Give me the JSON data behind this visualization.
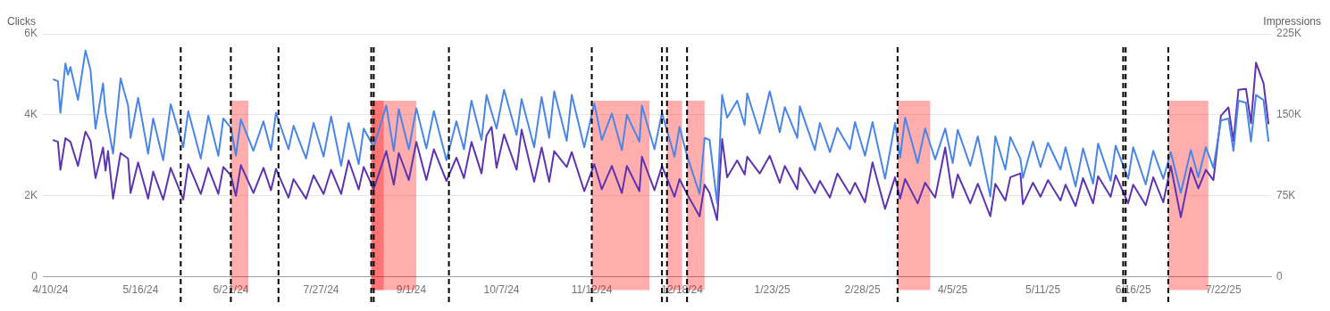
{
  "chart_data": {
    "type": "line",
    "ylabel": "Clicks",
    "y2label": "Impressions",
    "x": [
      "2024-04-11",
      "2024-04-13",
      "2024-04-14",
      "2024-04-16",
      "2024-04-17",
      "2024-04-18",
      "2024-04-21",
      "2024-04-24",
      "2024-04-26",
      "2024-04-28",
      "2024-05-01",
      "2024-05-02",
      "2024-05-03",
      "2024-05-05",
      "2024-05-08",
      "2024-05-11",
      "2024-05-12",
      "2024-05-15",
      "2024-05-19",
      "2024-05-21",
      "2024-05-25",
      "2024-05-28",
      "2024-06-02",
      "2024-06-04",
      "2024-06-09",
      "2024-06-12",
      "2024-06-16",
      "2024-06-18",
      "2024-06-21",
      "2024-06-23",
      "2024-06-25",
      "2024-06-30",
      "2024-07-04",
      "2024-07-07",
      "2024-07-09",
      "2024-07-14",
      "2024-07-16",
      "2024-07-21",
      "2024-07-24",
      "2024-07-28",
      "2024-07-31",
      "2024-08-04",
      "2024-08-07",
      "2024-08-11",
      "2024-08-13",
      "2024-08-17",
      "2024-08-22",
      "2024-08-25",
      "2024-08-27",
      "2024-08-31",
      "2024-09-03",
      "2024-09-07",
      "2024-09-10",
      "2024-09-15",
      "2024-09-19",
      "2024-09-22",
      "2024-09-25",
      "2024-09-29",
      "2024-10-01",
      "2024-10-03",
      "2024-10-05",
      "2024-10-08",
      "2024-10-13",
      "2024-10-15",
      "2024-10-20",
      "2024-10-23",
      "2024-10-26",
      "2024-10-28",
      "2024-11-02",
      "2024-11-04",
      "2024-11-09",
      "2024-11-13",
      "2024-11-16",
      "2024-11-20",
      "2024-11-24",
      "2024-11-26",
      "2024-12-01",
      "2024-12-02",
      "2024-12-07",
      "2024-12-10",
      "2024-12-15",
      "2024-12-17",
      "2024-12-20",
      "2024-12-25",
      "2024-12-27",
      "2024-12-29",
      "2025-01-01",
      "2025-01-03",
      "2025-01-05",
      "2025-01-09",
      "2025-01-12",
      "2025-01-13",
      "2025-01-18",
      "2025-01-22",
      "2025-01-26",
      "2025-01-28",
      "2025-02-02",
      "2025-02-03",
      "2025-02-09",
      "2025-02-11",
      "2025-02-15",
      "2025-02-18",
      "2025-02-23",
      "2025-02-25",
      "2025-03-01",
      "2025-03-04",
      "2025-03-09",
      "2025-03-13",
      "2025-03-15",
      "2025-03-17",
      "2025-03-22",
      "2025-03-25",
      "2025-03-29",
      "2025-04-02",
      "2025-04-05",
      "2025-04-07",
      "2025-04-12",
      "2025-04-15",
      "2025-04-20",
      "2025-04-22",
      "2025-04-26",
      "2025-04-28",
      "2025-05-02",
      "2025-05-03",
      "2025-05-07",
      "2025-05-10",
      "2025-05-13",
      "2025-05-18",
      "2025-05-20",
      "2025-05-24",
      "2025-05-27",
      "2025-05-31",
      "2025-06-02",
      "2025-06-07",
      "2025-06-09",
      "2025-06-14",
      "2025-06-16",
      "2025-06-21",
      "2025-06-24",
      "2025-06-28",
      "2025-07-01",
      "2025-07-05",
      "2025-07-09",
      "2025-07-12",
      "2025-07-15",
      "2025-07-18",
      "2025-07-21",
      "2025-07-24",
      "2025-07-26",
      "2025-07-28",
      "2025-07-31",
      "2025-08-02",
      "2025-08-04",
      "2025-08-07",
      "2025-08-09"
    ],
    "series": [
      {
        "color": "#4a86e8",
        "axis": "y",
        "values": [
          4880,
          4830,
          4050,
          5270,
          4990,
          5180,
          4370,
          5590,
          5110,
          3660,
          4780,
          4070,
          3730,
          3040,
          4900,
          4230,
          3430,
          4420,
          3040,
          3910,
          2880,
          4260,
          3200,
          4090,
          2920,
          3980,
          2990,
          3910,
          3680,
          2990,
          3890,
          3110,
          3840,
          3130,
          4050,
          3150,
          3730,
          2920,
          3800,
          2970,
          3960,
          2740,
          3800,
          2780,
          3660,
          3200,
          4230,
          3110,
          4140,
          3150,
          4160,
          3170,
          4090,
          2880,
          3840,
          3150,
          4350,
          3380,
          4490,
          4070,
          3660,
          4620,
          3500,
          4390,
          3200,
          4440,
          3430,
          4580,
          3360,
          4490,
          3200,
          4280,
          3380,
          4030,
          3130,
          4000,
          3340,
          4230,
          3150,
          4050,
          2970,
          3700,
          2990,
          2050,
          3430,
          3380,
          1820,
          4490,
          3930,
          4350,
          3750,
          4530,
          3540,
          4580,
          3570,
          4190,
          3430,
          4210,
          3130,
          3800,
          3080,
          3680,
          3150,
          3820,
          2990,
          3820,
          2420,
          3800,
          2940,
          3930,
          2810,
          3660,
          2900,
          3660,
          2810,
          3630,
          2740,
          3470,
          1980,
          3470,
          2650,
          3450,
          2920,
          2440,
          3340,
          2710,
          3310,
          2650,
          3200,
          2230,
          3170,
          2300,
          3290,
          2370,
          3240,
          2420,
          3200,
          2280,
          3110,
          2420,
          3080,
          2070,
          3130,
          2460,
          3200,
          2690,
          3860,
          3910,
          3110,
          4350,
          4300,
          3340,
          4490,
          4370,
          3340
        ]
      },
      {
        "color": "#5e35b1",
        "axis": "y2",
        "values": [
          126700,
          125000,
          99100,
          128400,
          126700,
          125000,
          102600,
          134500,
          125900,
          91400,
          119800,
          98300,
          116400,
          72400,
          114600,
          109500,
          77600,
          106000,
          72400,
          97400,
          71500,
          100900,
          71500,
          104300,
          76700,
          100900,
          76700,
          101700,
          94000,
          75000,
          103400,
          77600,
          100900,
          80200,
          100000,
          73300,
          90500,
          72400,
          94000,
          76700,
          99100,
          76700,
          107800,
          81000,
          101700,
          81000,
          116400,
          85300,
          114600,
          89600,
          125000,
          89600,
          118100,
          88800,
          110300,
          91400,
          125000,
          95700,
          131000,
          138800,
          100900,
          131900,
          99100,
          136200,
          87900,
          119800,
          87900,
          116400,
          101700,
          115500,
          79300,
          104300,
          81000,
          102600,
          77600,
          102600,
          79300,
          111200,
          80200,
          102600,
          74100,
          90500,
          76700,
          56000,
          85300,
          77600,
          52600,
          127600,
          92200,
          107800,
          94800,
          111200,
          95700,
          112100,
          87100,
          102600,
          81000,
          100900,
          77600,
          88800,
          73300,
          95700,
          76700,
          87100,
          69000,
          106000,
          62900,
          92200,
          72400,
          90500,
          68100,
          87100,
          73300,
          119800,
          73300,
          94800,
          68100,
          86200,
          56000,
          86200,
          70700,
          92200,
          95700,
          67200,
          87100,
          74100,
          89600,
          70700,
          85300,
          65500,
          91400,
          68100,
          93100,
          74100,
          94000,
          68100,
          85300,
          66400,
          92200,
          69000,
          102600,
          55200,
          100900,
          81900,
          99100,
          89600,
          149100,
          156900,
          125900,
          173300,
          174100,
          142200,
          198300,
          179300,
          141400
        ]
      }
    ],
    "xlim": [
      "2024-04-07",
      "2025-08-10"
    ],
    "xticks": [
      {
        "value": "2024-04-10",
        "label": "4/10/24"
      },
      {
        "value": "2024-05-16",
        "label": "5/16/24"
      },
      {
        "value": "2024-06-21",
        "label": "6/21/24"
      },
      {
        "value": "2024-07-27",
        "label": "7/27/24"
      },
      {
        "value": "2024-09-01",
        "label": "9/1/24"
      },
      {
        "value": "2024-10-07",
        "label": "10/7/24"
      },
      {
        "value": "2024-11-12",
        "label": "11/12/24"
      },
      {
        "value": "2024-12-18",
        "label": "12/18/24"
      },
      {
        "value": "2025-01-23",
        "label": "1/23/25"
      },
      {
        "value": "2025-02-28",
        "label": "2/28/25"
      },
      {
        "value": "2025-04-05",
        "label": "4/5/25"
      },
      {
        "value": "2025-05-11",
        "label": "5/11/25"
      },
      {
        "value": "2025-06-16",
        "label": "6/16/25"
      },
      {
        "value": "2025-07-22",
        "label": "7/22/25"
      }
    ],
    "ylim": [
      0,
      6000
    ],
    "yticks": [
      0,
      {
        "value": 2000,
        "label": "2K"
      },
      {
        "value": 4000,
        "label": "4K"
      },
      {
        "value": 6000,
        "label": "6K"
      }
    ],
    "y2lim": [
      0,
      225000
    ],
    "y2ticks": [
      0,
      {
        "value": 75000,
        "label": "75K"
      },
      {
        "value": 150000,
        "label": "150K"
      },
      {
        "value": 225000,
        "label": "225K"
      }
    ],
    "grid": "y",
    "legend": false,
    "marker": "none",
    "line_style": "solid",
    "ref_lines": [
      {
        "axis": "x",
        "value": "2024-06-01",
        "color": "#000000",
        "line_style": "dashed"
      },
      {
        "axis": "x",
        "value": "2024-06-21",
        "color": "#000000",
        "line_style": "dashed"
      },
      {
        "axis": "x",
        "value": "2024-07-10",
        "color": "#000000",
        "line_style": "dashed"
      },
      {
        "axis": "x",
        "value": "2024-08-16",
        "color": "#000000",
        "line_style": "dashed"
      },
      {
        "axis": "x",
        "value": "2024-08-17",
        "color": "#000000",
        "line_style": "dashed"
      },
      {
        "axis": "x",
        "value": "2024-09-16",
        "color": "#000000",
        "line_style": "dashed"
      },
      {
        "axis": "x",
        "value": "2024-11-12",
        "color": "#000000",
        "line_style": "dashed"
      },
      {
        "axis": "x",
        "value": "2024-12-10",
        "color": "#000000",
        "line_style": "dashed"
      },
      {
        "axis": "x",
        "value": "2024-12-12",
        "color": "#000000",
        "line_style": "dashed"
      },
      {
        "axis": "x",
        "value": "2024-12-20",
        "color": "#000000",
        "line_style": "dashed"
      },
      {
        "axis": "x",
        "value": "2025-03-14",
        "color": "#000000",
        "line_style": "dashed"
      },
      {
        "axis": "x",
        "value": "2025-06-12",
        "color": "#000000",
        "line_style": "dashed"
      },
      {
        "axis": "x",
        "value": "2025-06-13",
        "color": "#000000",
        "line_style": "dashed"
      },
      {
        "axis": "x",
        "value": "2025-06-30",
        "color": "#000000",
        "line_style": "dashed"
      }
    ],
    "bands": [
      {
        "axis": "x",
        "from": "2024-06-21",
        "to": "2024-06-28",
        "color": "#ff0000"
      },
      {
        "axis": "x",
        "from": "2024-08-16",
        "to": "2024-09-03",
        "color": "#ff0000"
      },
      {
        "axis": "x",
        "from": "2024-08-16",
        "to": "2024-08-21",
        "color": "#ff0000"
      },
      {
        "axis": "x",
        "from": "2024-11-12",
        "to": "2024-12-05",
        "color": "#ff0000"
      },
      {
        "axis": "x",
        "from": "2024-12-12",
        "to": "2024-12-18",
        "color": "#ff0000"
      },
      {
        "axis": "x",
        "from": "2024-12-20",
        "to": "2024-12-27",
        "color": "#ff0000"
      },
      {
        "axis": "x",
        "from": "2025-03-14",
        "to": "2025-03-27",
        "color": "#ff0000"
      },
      {
        "axis": "x",
        "from": "2025-06-30",
        "to": "2025-07-16",
        "color": "#ff0000"
      }
    ]
  }
}
